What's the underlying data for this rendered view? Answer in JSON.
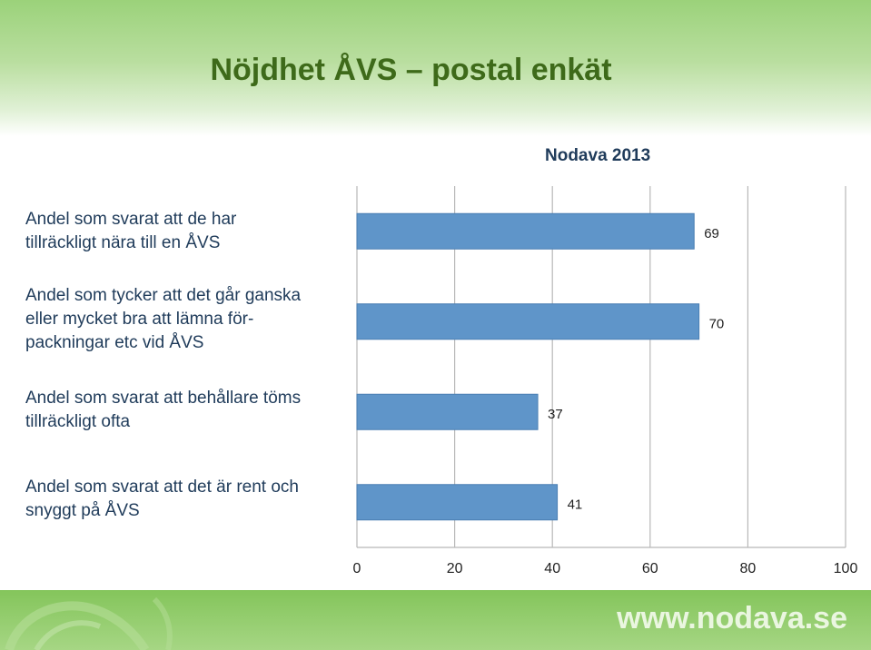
{
  "slide": {
    "title": "Nöjdhet ÅVS – postal enkät",
    "website": "www.nodava.se"
  },
  "colors": {
    "bar": "#5f95c9",
    "bar_edge": "#4a7fb3",
    "grid": "#b8b8b8",
    "title": "#3e6a1a",
    "header_green": "#9bd27a",
    "footer_green": "#84c55b"
  },
  "chart_data": {
    "type": "bar",
    "orientation": "horizontal",
    "series": [
      {
        "name": "Nodava 2013",
        "values": [
          69,
          70,
          37,
          41
        ]
      }
    ],
    "categories": [
      "Andel som svarat att de har\ntillräckligt nära till en ÅVS",
      "Andel som tycker att det går ganska\neller mycket bra att lämna för-\npackningar etc vid ÅVS",
      "Andel som svarat att behållare töms\ntillräckligt ofta",
      "Andel som svarat att det är rent och\nsnyggt på ÅVS"
    ],
    "xlim": [
      0,
      100
    ],
    "xticks": [
      0,
      20,
      40,
      60,
      80,
      100
    ],
    "grid": true,
    "legend": "top-right"
  }
}
